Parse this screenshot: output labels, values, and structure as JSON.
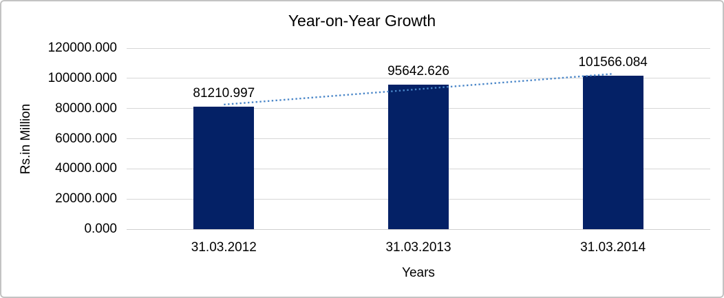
{
  "chart_data": {
    "type": "bar",
    "title": "Year-on-Year Growth",
    "categories": [
      "31.03.2012",
      "31.03.2013",
      "31.03.2014"
    ],
    "values": [
      81210.997,
      95642.626,
      101566.084
    ],
    "data_labels": [
      "81210.997",
      "95642.626",
      "101566.084"
    ],
    "xlabel": "Years",
    "ylabel": "Rs.in Million",
    "ylim": [
      0,
      120000
    ],
    "ytick_interval": 20000,
    "ytick_labels": [
      "0.000",
      "20000.000",
      "40000.000",
      "60000.000",
      "80000.000",
      "100000.000",
      "120000.000"
    ],
    "grid": true,
    "legend": "none",
    "trendline": {
      "type": "linear",
      "style": "dotted"
    },
    "colors": {
      "bar": "#042166",
      "trendline": "#4a86c8",
      "gridline": "#d6d6d6",
      "axis_line": "#cfcfcf",
      "text": "#000000",
      "border": "#c3c3c3",
      "background": "#ffffff"
    }
  }
}
